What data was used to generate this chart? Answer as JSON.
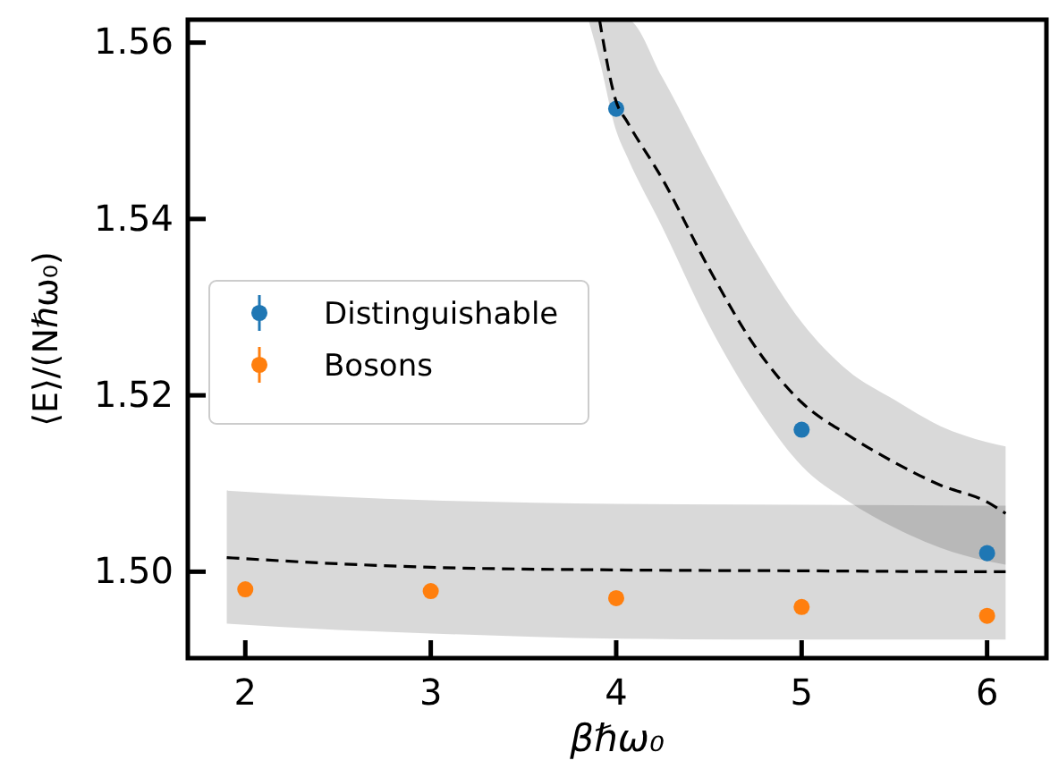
{
  "chart_data": {
    "type": "scatter",
    "xlabel": "βℏω₀",
    "ylabel": "⟨E⟩/(Nℏω₀)",
    "xlim": [
      1.69,
      6.32
    ],
    "xticks": [
      2,
      3,
      4,
      5,
      6
    ],
    "ylim": [
      1.4902,
      1.5626
    ],
    "yticks": [
      {
        "value": 1.5,
        "label": "1.50"
      },
      {
        "value": 1.52,
        "label": "1.52"
      },
      {
        "value": 1.54,
        "label": "1.54"
      },
      {
        "value": 1.56,
        "label": "1.56"
      }
    ],
    "grid": false,
    "legend": "left",
    "marker": "circle",
    "series": [
      {
        "name": "Distinguishable",
        "color": "#1f77b4",
        "x": [
          4,
          5,
          6
        ],
        "values": [
          1.5525,
          1.5161,
          1.5021
        ]
      },
      {
        "name": "Bosons",
        "color": "#ff7f0e",
        "x": [
          2,
          3,
          4,
          5,
          6
        ],
        "values": [
          1.498,
          1.4978,
          1.497,
          1.496,
          1.495
        ]
      },
      {
        "type": "line",
        "line_style": "dashed",
        "marker": "none",
        "color": "#000000",
        "x": [
          3.85,
          3.91,
          4,
          4.06,
          4.25,
          4.5,
          4.75,
          5,
          5.25,
          5.5,
          5.75,
          6,
          6.1
        ],
        "values": [
          null,
          1.5626,
          1.5533,
          1.551,
          1.5445,
          1.5344,
          1.5255,
          1.5192,
          1.5155,
          1.5124,
          1.5098,
          1.5079,
          1.5066
        ],
        "lower": [
          1.5626,
          1.558,
          1.55,
          1.547,
          1.539,
          1.528,
          1.519,
          1.512,
          1.508,
          1.505,
          1.5027,
          1.5012,
          1.5008
        ],
        "upper": [
          1.5626,
          1.5626,
          1.5626,
          1.5626,
          1.556,
          1.546,
          1.5364,
          1.5283,
          1.5228,
          1.5195,
          1.5165,
          1.5147,
          1.5142
        ]
      },
      {
        "type": "line",
        "line_style": "dashed",
        "marker": "none",
        "color": "#000000",
        "x": [
          1.9,
          2.5,
          3,
          4,
          5,
          6,
          6.1
        ],
        "values": [
          1.5016,
          1.5009,
          1.5005,
          1.5002,
          1.5001,
          1.5,
          1.5
        ],
        "lower": [
          1.4941,
          1.4934,
          1.493,
          1.4924,
          1.4923,
          1.4923,
          1.4923
        ],
        "upper": [
          1.5092,
          1.5085,
          1.5081,
          1.5077,
          1.5076,
          1.5075,
          1.5075
        ]
      }
    ]
  }
}
